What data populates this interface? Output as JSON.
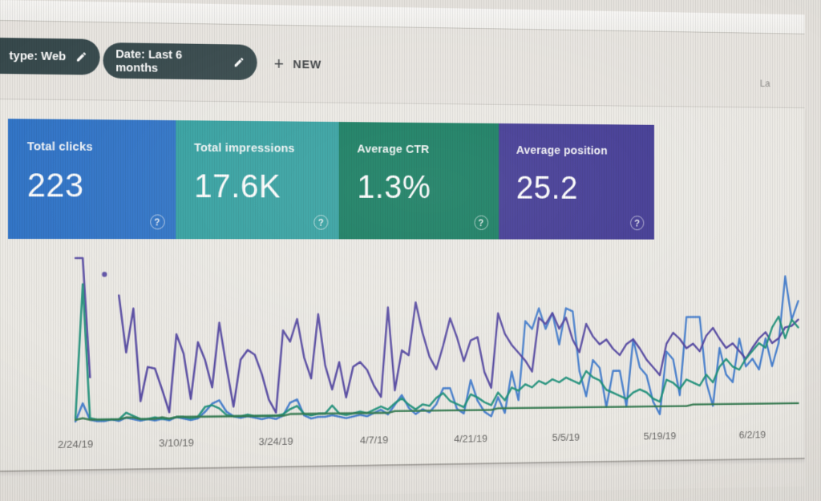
{
  "page": {
    "top_right_text": "La"
  },
  "filter_bar": {
    "chips": [
      {
        "label": "type: Web",
        "icon": "pencil"
      },
      {
        "label": "Date: Last 6 months",
        "icon": "pencil"
      }
    ],
    "new_button": {
      "label": "NEW",
      "icon": "plus",
      "plus_glyph": "+"
    },
    "chip_color": "#35494d"
  },
  "cards": [
    {
      "id": "clicks",
      "label": "Total clicks",
      "value": "223",
      "color": "#2a74cf",
      "help_icon": "?"
    },
    {
      "id": "impressions",
      "label": "Total impressions",
      "value": "17.6K",
      "color": "#2da4a4",
      "help_icon": "?"
    },
    {
      "id": "ctr",
      "label": "Average CTR",
      "value": "1.3%",
      "color": "#0e7f60",
      "help_icon": "?"
    },
    {
      "id": "position",
      "label": "Average position",
      "value": "25.2",
      "color": "#41389c",
      "help_icon": "?"
    }
  ],
  "chart_data": {
    "type": "line",
    "title": "",
    "xlabel": "",
    "ylabel": "",
    "x_unit": "day (daily points, 2/24/19 through ~6/9/19)",
    "x_tick_labels": [
      "2/24/19",
      "3/10/19",
      "3/24/19",
      "4/7/19",
      "4/21/19",
      "5/5/19",
      "5/19/19",
      "6/2/19"
    ],
    "x_tick_day_indices": [
      0,
      14,
      28,
      42,
      56,
      70,
      84,
      98
    ],
    "y_axis_visible": false,
    "grid": false,
    "legend": "none visible",
    "value_note": "no y-axis shown in pixels; values are estimated % of plot height (0=baseline, 100=top)",
    "series": [
      {
        "name": "Clicks",
        "color": "#3a7cd6",
        "values": [
          0,
          11,
          1,
          0,
          0,
          1,
          0,
          2,
          1,
          0,
          1,
          0,
          1,
          0,
          2,
          1,
          0,
          1,
          5,
          10,
          12,
          5,
          2,
          1,
          2,
          1,
          0,
          1,
          0,
          2,
          10,
          12,
          2,
          0,
          1,
          1,
          2,
          1,
          0,
          1,
          2,
          1,
          3,
          5,
          2,
          8,
          14,
          6,
          2,
          5,
          3,
          8,
          18,
          18,
          5,
          2,
          23,
          10,
          3,
          0,
          12,
          2,
          28,
          10,
          60,
          55,
          68,
          55,
          65,
          45,
          68,
          66,
          28,
          12,
          35,
          30,
          5,
          28,
          28,
          5,
          48,
          30,
          25,
          8,
          0,
          40,
          35,
          12,
          62,
          62,
          62,
          20,
          5,
          42,
          25,
          20,
          48,
          30,
          35,
          28,
          48,
          30,
          45,
          88,
          60,
          72
        ]
      },
      {
        "name": "Impressions",
        "color": "#5243a9",
        "values": [
          100,
          100,
          27,
          null,
          null,
          null,
          77,
          42,
          69,
          12,
          33,
          32,
          19,
          5,
          53,
          41,
          13,
          48,
          37,
          20,
          60,
          33,
          8,
          37,
          43,
          40,
          28,
          12,
          4,
          55,
          48,
          62,
          38,
          25,
          65,
          33,
          18,
          35,
          13,
          32,
          35,
          30,
          20,
          13,
          69,
          17,
          42,
          39,
          72,
          53,
          38,
          30,
          45,
          62,
          50,
          35,
          48,
          50,
          28,
          18,
          65,
          52,
          45,
          40,
          35,
          28,
          62,
          58,
          65,
          55,
          62,
          48,
          40,
          58,
          50,
          45,
          48,
          42,
          38,
          45,
          48,
          42,
          35,
          30,
          25,
          45,
          52,
          48,
          42,
          45,
          40,
          50,
          55,
          48,
          42,
          45,
          40,
          35,
          42,
          48,
          52,
          45,
          48,
          55,
          56,
          60
        ]
      },
      {
        "name": "CTR",
        "color": "#16947b",
        "values": [
          2,
          84,
          2,
          1,
          1,
          1,
          1,
          5,
          3,
          1,
          1,
          2,
          1,
          1,
          2,
          2,
          1,
          2,
          8,
          9,
          7,
          3,
          2,
          2,
          3,
          2,
          2,
          2,
          2,
          3,
          6,
          8,
          3,
          2,
          3,
          3,
          8,
          3,
          2,
          3,
          4,
          3,
          5,
          7,
          5,
          9,
          12,
          8,
          5,
          8,
          7,
          12,
          15,
          10,
          8,
          6,
          14,
          12,
          9,
          7,
          15,
          10,
          18,
          16,
          20,
          18,
          22,
          20,
          23,
          21,
          24,
          22,
          20,
          28,
          24,
          22,
          16,
          14,
          12,
          10,
          14,
          16,
          14,
          10,
          8,
          22,
          20,
          16,
          22,
          20,
          18,
          25,
          20,
          30,
          35,
          30,
          28,
          35,
          40,
          45,
          42,
          55,
          62,
          48,
          60,
          55
        ]
      },
      {
        "name": "Position",
        "color": "#2e7d4c",
        "values": [
          1,
          2,
          1,
          1,
          1,
          1,
          1,
          2,
          2,
          1,
          1,
          1,
          2,
          1,
          2,
          2,
          2,
          2,
          2,
          2,
          2,
          2,
          2,
          2,
          2,
          2,
          2,
          2,
          2,
          2,
          3,
          3,
          3,
          3,
          3,
          3,
          3,
          3,
          3,
          3,
          3,
          3,
          3,
          3,
          3,
          4,
          4,
          4,
          4,
          4,
          4,
          4,
          4,
          4,
          4,
          4,
          4,
          4,
          4,
          4,
          5,
          5,
          5,
          5,
          5,
          5,
          5,
          5,
          5,
          5,
          5,
          5,
          5,
          5,
          5,
          5,
          5,
          5,
          5,
          5,
          5,
          5,
          5,
          5,
          5,
          5,
          5,
          5,
          5,
          6,
          6,
          6,
          6,
          6,
          6,
          6,
          6,
          6,
          6,
          6,
          6,
          6,
          6,
          6,
          6,
          6
        ]
      }
    ],
    "isolated_points": [
      {
        "series": "Impressions",
        "color": "#5243a9",
        "day": 4,
        "value": 90
      }
    ]
  }
}
